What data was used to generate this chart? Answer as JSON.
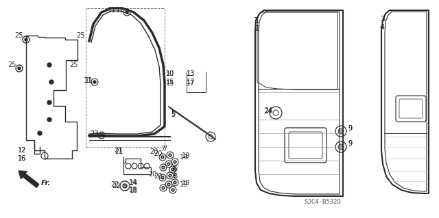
{
  "bg_color": "#ffffff",
  "line_color": "#2a2a2a",
  "diagram_code": "SJC4-B5320",
  "label_fs": 7.0
}
